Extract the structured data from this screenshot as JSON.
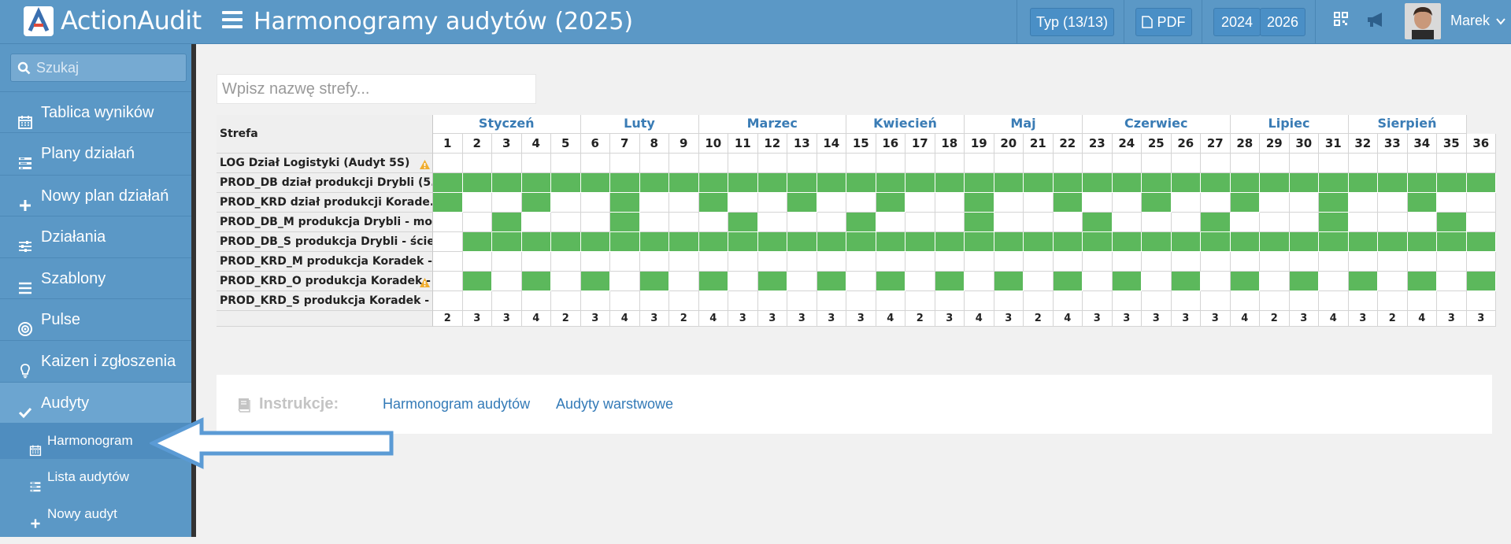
{
  "app": {
    "name": "ActionAudit"
  },
  "header": {
    "title": "Harmonogramy audytów (2025)",
    "type_button": "Typ (13/13)",
    "pdf_button": "PDF",
    "year_prev": "2024",
    "year_next": "2026",
    "user_name": "Marek"
  },
  "sidebar": {
    "search_placeholder": "Szukaj",
    "items": [
      {
        "label": "Tablica wyników",
        "icon": "calendar-icon"
      },
      {
        "label": "Plany działań",
        "icon": "tasks-icon"
      },
      {
        "label": "Nowy plan działań",
        "icon": "plus-icon"
      },
      {
        "label": "Działania",
        "icon": "sliders-icon"
      },
      {
        "label": "Szablony",
        "icon": "list-icon"
      },
      {
        "label": "Pulse",
        "icon": "target-icon"
      },
      {
        "label": "Kaizen i zgłoszenia",
        "icon": "lightbulb-icon"
      },
      {
        "label": "Audyty",
        "icon": "check-icon"
      }
    ],
    "sub_items": [
      {
        "label": "Harmonogram",
        "icon": "calendar-icon"
      },
      {
        "label": "Lista audytów",
        "icon": "tasks-icon"
      },
      {
        "label": "Nowy audyt",
        "icon": "plus-icon"
      }
    ]
  },
  "main": {
    "zone_placeholder": "Wpisz nazwę strefy...",
    "zone_header": "Strefa",
    "months": [
      "Styczeń",
      "Luty",
      "Marzec",
      "Kwiecień",
      "Maj",
      "Czerwiec",
      "Lipiec",
      "Sierpień"
    ],
    "weeks": [
      "1",
      "2",
      "3",
      "4",
      "5",
      "6",
      "7",
      "8",
      "9",
      "10",
      "11",
      "12",
      "13",
      "14",
      "15",
      "16",
      "17",
      "18",
      "19",
      "20",
      "21",
      "22",
      "23",
      "24",
      "25",
      "26",
      "27",
      "28",
      "29",
      "30",
      "31",
      "32",
      "33",
      "34",
      "35",
      "36"
    ],
    "zones": [
      {
        "name": "LOG Dział Logistyki (Audyt 5S)",
        "warning": true
      },
      {
        "name": "PROD_DB dział produkcji Drybli (5...",
        "warning": false
      },
      {
        "name": "PROD_KRD dział produkcji Korade...",
        "warning": false
      },
      {
        "name": "PROD_DB_M produkcja Drybli - mo...",
        "warning": false
      },
      {
        "name": "PROD_DB_S produkcja Drybli - ście...",
        "warning": false
      },
      {
        "name": "PROD_KRD_M produkcja Koradek -...",
        "warning": false
      },
      {
        "name": "PROD_KRD_O produkcja Koradek -",
        "warning": true
      },
      {
        "name": "PROD_KRD_S produkcja Koradek - ...",
        "warning": false
      }
    ],
    "totals": [
      "2",
      "3",
      "3",
      "4",
      "2",
      "3",
      "4",
      "3",
      "2",
      "4",
      "3",
      "3",
      "3",
      "3",
      "3",
      "4",
      "2",
      "3",
      "4",
      "3",
      "2",
      "4",
      "3",
      "3",
      "3",
      "3",
      "3",
      "4",
      "2",
      "3",
      "4",
      "3",
      "2",
      "4",
      "3",
      "3"
    ]
  },
  "instructions": {
    "label": "Instrukcje:",
    "link1": "Harmonogram audytów",
    "link2": "Audyty warstwowe"
  }
}
